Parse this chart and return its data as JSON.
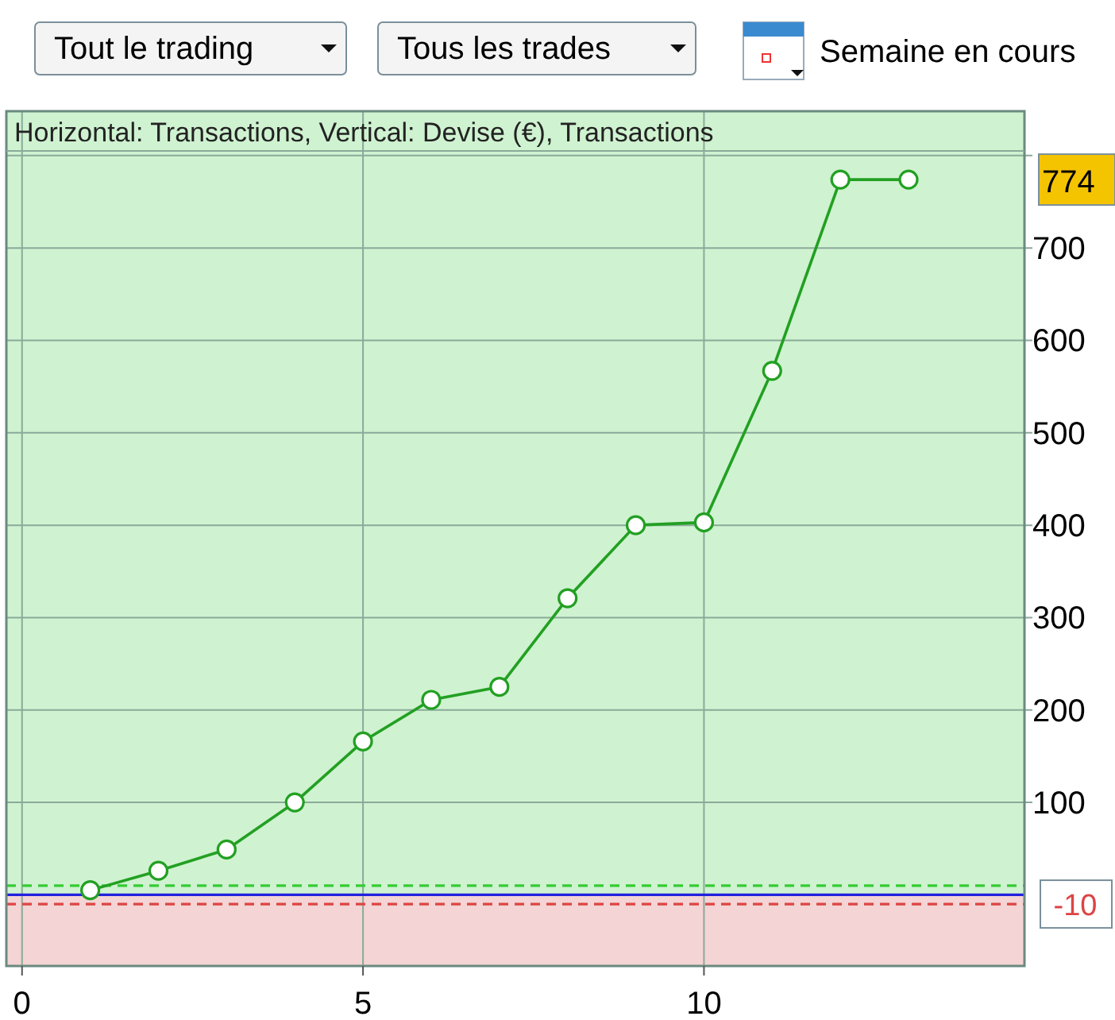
{
  "chart_data": {
    "type": "line",
    "title": "Horizontal: Transactions, Vertical: Devise (€), Transactions",
    "annotations": [
      "Tout le trading",
      "Tous les trades",
      "Semaine en cours",
      "774"
    ],
    "x": [
      1,
      2,
      3,
      4,
      5,
      6,
      7,
      8,
      9,
      10,
      11,
      12,
      13
    ],
    "series": [
      {
        "color": "#22a022",
        "values": [
          5,
          26,
          49,
          100,
          166,
          211,
          225,
          321,
          400,
          403,
          567,
          774,
          774
        ]
      }
    ],
    "xlim": [
      -0.23,
      14.7
    ],
    "ylim": [
      -77,
      848
    ],
    "xticks": [
      0,
      5,
      10
    ],
    "yticks": [
      100,
      200,
      300,
      400,
      500,
      600,
      700,
      {
        "value": 800,
        "label": null
      }
    ],
    "grid": true,
    "marker": "circle",
    "line_style": "solid",
    "bands": [
      {
        "axis": "y",
        "from": 0,
        "to": 848,
        "color": "#cff2d0"
      },
      {
        "axis": "y",
        "from": -77,
        "to": 0,
        "color": "#f4d4d4"
      }
    ],
    "ref_lines": [
      {
        "axis": "y",
        "value": 10,
        "color": "#33cc33",
        "line_style": "dashed"
      },
      {
        "axis": "y",
        "value": 0,
        "color": "#2222dd",
        "line_style": "solid"
      },
      {
        "axis": "y",
        "value": -10,
        "label": "-10",
        "color": "#dd4444",
        "line_style": "dashed"
      }
    ]
  }
}
